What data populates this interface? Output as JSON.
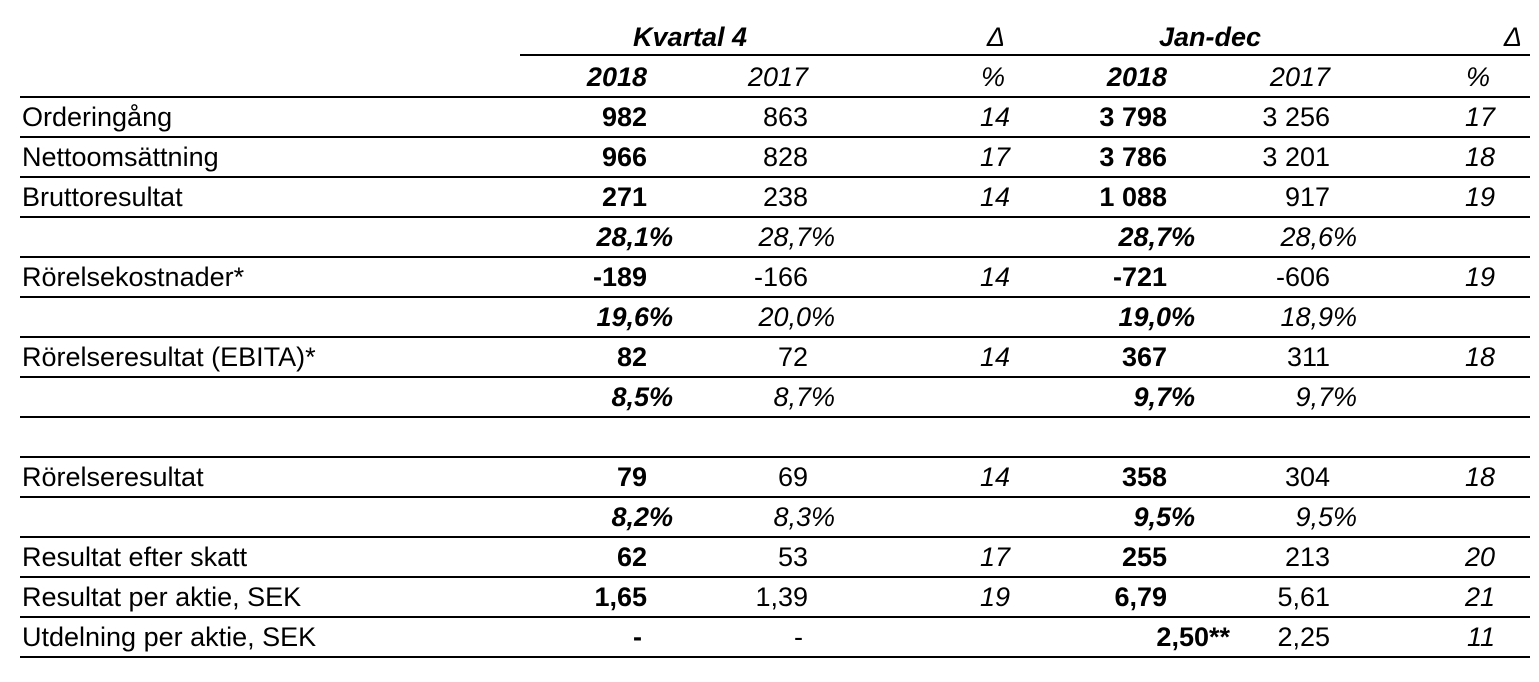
{
  "header": {
    "period_q4": "Kvartal 4",
    "delta_q4": "Δ",
    "period_year": "Jan-dec",
    "delta_year": "Δ",
    "q4_2018": "2018",
    "q4_2017": "2017",
    "q4_pct": "%",
    "jd_2018": "2018",
    "jd_2017": "2017",
    "jd_pct": "%"
  },
  "table": {
    "groups": [
      {
        "rows": [
          {
            "label": "Orderingång",
            "q4_2018": "982",
            "q4_2017": "863",
            "q4_delta": "14",
            "jd_2018": "3 798",
            "jd_2017": "3 256",
            "jd_delta": "17"
          },
          {
            "label": "Nettoomsättning",
            "q4_2018": "966",
            "q4_2017": "828",
            "q4_delta": "17",
            "jd_2018": "3 786",
            "jd_2017": "3 201",
            "jd_delta": "18"
          },
          {
            "label": "Bruttoresultat",
            "q4_2018": "271",
            "q4_2017": "238",
            "q4_delta": "14",
            "jd_2018": "1 088",
            "jd_2017": "917",
            "jd_delta": "19"
          },
          {
            "q4_2018": "28,1%",
            "q4_2017": "28,7%",
            "jd_2018": "28,7%",
            "jd_2017": "28,6%"
          },
          {
            "label": "Rörelsekostnader*",
            "q4_2018": "-189",
            "q4_2017": "-166",
            "q4_delta": "14",
            "jd_2018": "-721",
            "jd_2017": "-606",
            "jd_delta": "19"
          },
          {
            "q4_2018": "19,6%",
            "q4_2017": "20,0%",
            "jd_2018": "19,0%",
            "jd_2017": "18,9%"
          },
          {
            "label": "Rörelseresultat (EBITA)*",
            "q4_2018": "82",
            "q4_2017": "72",
            "q4_delta": "14",
            "jd_2018": "367",
            "jd_2017": "311",
            "jd_delta": "18"
          },
          {
            "q4_2018": "8,5%",
            "q4_2017": "8,7%",
            "jd_2018": "9,7%",
            "jd_2017": "9,7%"
          }
        ]
      },
      {
        "rows": [
          {
            "label": "Rörelseresultat",
            "q4_2018": "79",
            "q4_2017": "69",
            "q4_delta": "14",
            "jd_2018": "358",
            "jd_2017": "304",
            "jd_delta": "18"
          },
          {
            "q4_2018": "8,2%",
            "q4_2017": "8,3%",
            "jd_2018": "9,5%",
            "jd_2017": "9,5%"
          },
          {
            "label": "Resultat efter skatt",
            "q4_2018": "62",
            "q4_2017": "53",
            "q4_delta": "17",
            "jd_2018": "255",
            "jd_2017": "213",
            "jd_delta": "20"
          },
          {
            "label": "Resultat per aktie, SEK",
            "q4_2018": "1,65",
            "q4_2017": "1,39",
            "q4_delta": "19",
            "jd_2018": "6,79",
            "jd_2017": "5,61",
            "jd_delta": "21"
          },
          {
            "label": "Utdelning per aktie, SEK",
            "q4_2018": "-",
            "q4_2017": "-",
            "jd_2018": "2,50**",
            "jd_2017": "2,25",
            "jd_delta": "11"
          }
        ]
      }
    ]
  }
}
